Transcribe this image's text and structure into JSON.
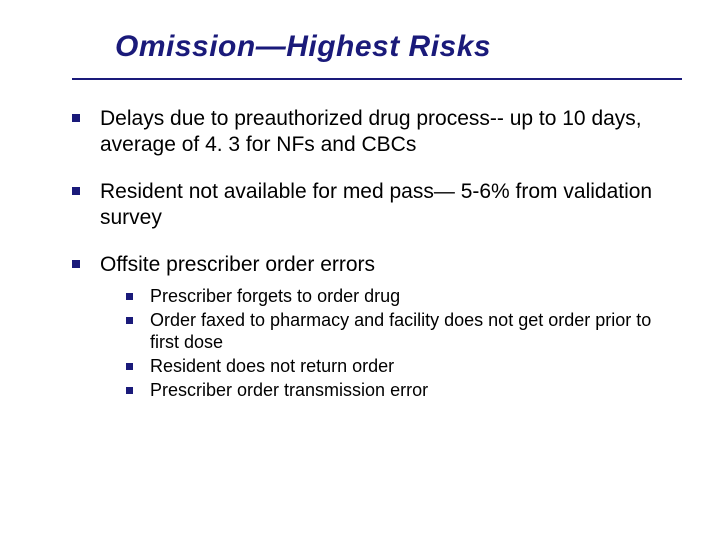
{
  "title": "Omission—Highest Risks",
  "bullets": [
    {
      "text": "Delays due to preauthorized drug process-- up to 10 days, average of 4. 3 for NFs and CBCs"
    },
    {
      "text": "Resident not available for med pass— 5-6% from validation survey"
    },
    {
      "text": "Offsite prescriber order errors",
      "sub": [
        "Prescriber forgets to order drug",
        "Order faxed to pharmacy and facility does not get order prior to first dose",
        "Resident does not return order",
        "Prescriber order transmission error"
      ]
    }
  ]
}
